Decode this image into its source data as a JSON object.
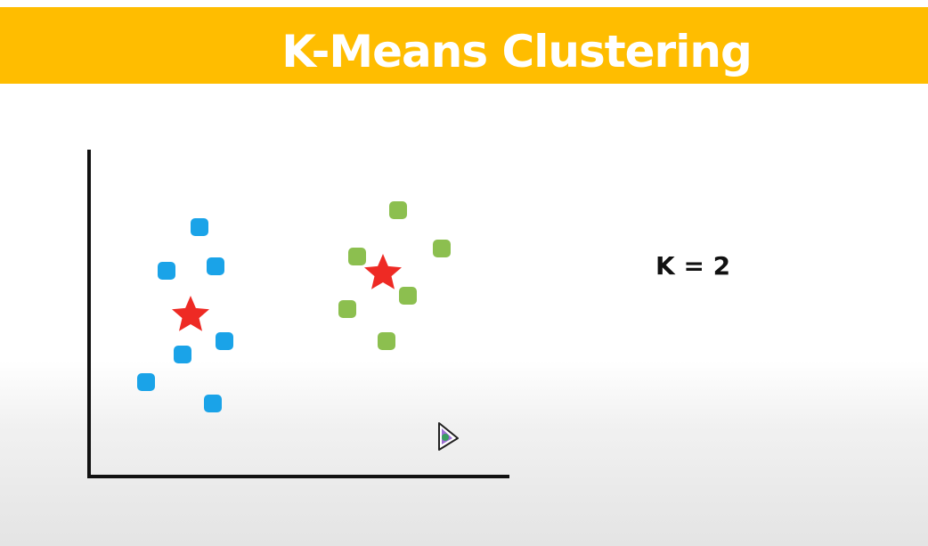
{
  "slide": {
    "title": "K-Means Clustering",
    "k_label": "K = 2"
  },
  "colors": {
    "banner": "#ffbd00",
    "cluster_1": "#1aa3e8",
    "cluster_2": "#8cbf4f",
    "centroid": "#ee2a24",
    "axes": "#111111"
  },
  "icons": {
    "data_point": "rounded-square",
    "centroid": "star-icon",
    "cursor": "cursor-icon"
  }
}
